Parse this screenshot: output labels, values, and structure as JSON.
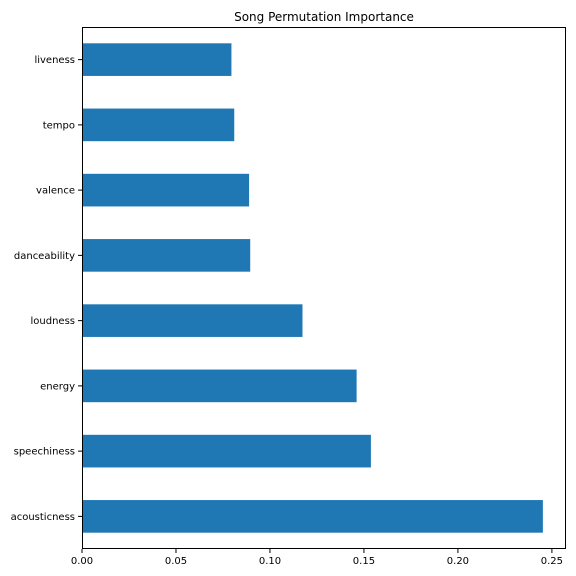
{
  "chart_data": {
    "type": "bar",
    "orientation": "horizontal",
    "title": "Song Permutation Importance",
    "xlabel": "",
    "ylabel": "",
    "categories": [
      "acousticness",
      "speechiness",
      "energy",
      "loudness",
      "danceability",
      "valence",
      "tempo",
      "liveness"
    ],
    "values": [
      0.2452,
      0.1537,
      0.1461,
      0.1173,
      0.0895,
      0.0889,
      0.081,
      0.0795
    ],
    "xlim": [
      0,
      0.2575
    ],
    "xticks": [
      0.0,
      0.05,
      0.1,
      0.15,
      0.2,
      0.25
    ],
    "xtick_labels": [
      "0.00",
      "0.05",
      "0.10",
      "0.15",
      "0.20",
      "0.25"
    ],
    "bar_color": "#1f77b4",
    "grid": false,
    "legend": false
  }
}
